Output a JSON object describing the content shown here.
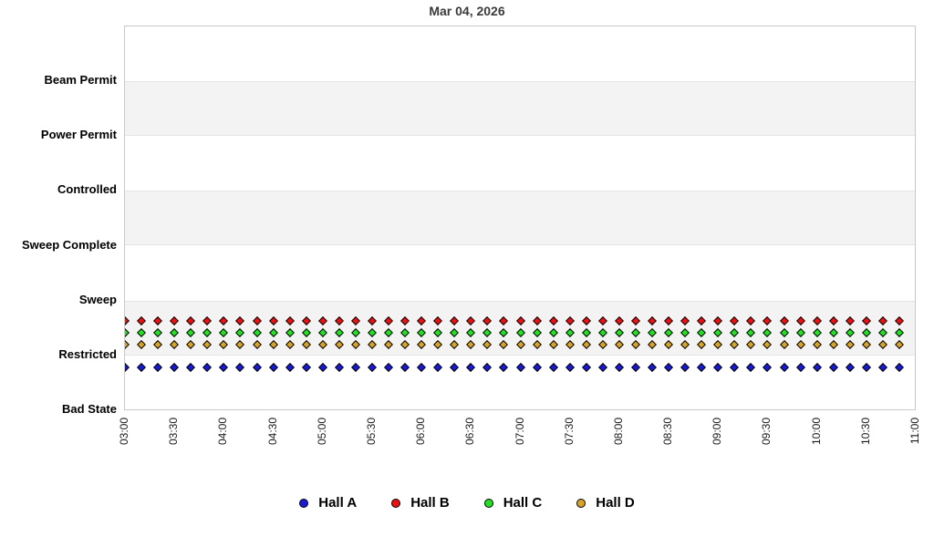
{
  "chart_data": {
    "type": "scatter",
    "title": "Mar 04, 2026",
    "xlabel": "",
    "ylabel": "",
    "legend_position": "bottom",
    "grid_bands": "alternating gray/white between state levels",
    "y_levels_bottom_to_top": [
      "Bad State",
      "Restricted",
      "Sweep",
      "Sweep Complete",
      "Controlled",
      "Power Permit",
      "Beam Permit"
    ],
    "x_tick_labels": [
      "03:00",
      "03:30",
      "04:00",
      "04:30",
      "05:00",
      "05:30",
      "06:00",
      "06:30",
      "07:00",
      "07:30",
      "08:00",
      "08:30",
      "09:00",
      "09:30",
      "10:00",
      "10:30",
      "11:00"
    ],
    "x_range": [
      "03:00",
      "11:00"
    ],
    "sample_interval_minutes": 10,
    "sample_times": [
      "03:00",
      "03:10",
      "03:20",
      "03:30",
      "03:40",
      "03:50",
      "04:00",
      "04:10",
      "04:20",
      "04:30",
      "04:40",
      "04:50",
      "05:00",
      "05:10",
      "05:20",
      "05:30",
      "05:40",
      "05:50",
      "06:00",
      "06:10",
      "06:20",
      "06:30",
      "06:40",
      "06:50",
      "07:00",
      "07:10",
      "07:20",
      "07:30",
      "07:40",
      "07:50",
      "08:00",
      "08:10",
      "08:20",
      "08:30",
      "08:40",
      "08:50",
      "09:00",
      "09:10",
      "09:20",
      "09:30",
      "09:40",
      "09:50",
      "10:00",
      "10:10",
      "10:20",
      "10:30",
      "10:40",
      "10:50"
    ],
    "series": [
      {
        "name": "Hall A",
        "color": "#1a1ad6",
        "marker": "diamond",
        "state_at_all_sample_times": "Restricted"
      },
      {
        "name": "Hall B",
        "color": "#ee1111",
        "marker": "diamond",
        "state_at_all_sample_times": "Restricted"
      },
      {
        "name": "Hall C",
        "color": "#22e022",
        "marker": "diamond",
        "state_at_all_sample_times": "Restricted"
      },
      {
        "name": "Hall D",
        "color": "#d8a428",
        "marker": "diamond",
        "state_at_all_sample_times": "Restricted"
      }
    ]
  }
}
